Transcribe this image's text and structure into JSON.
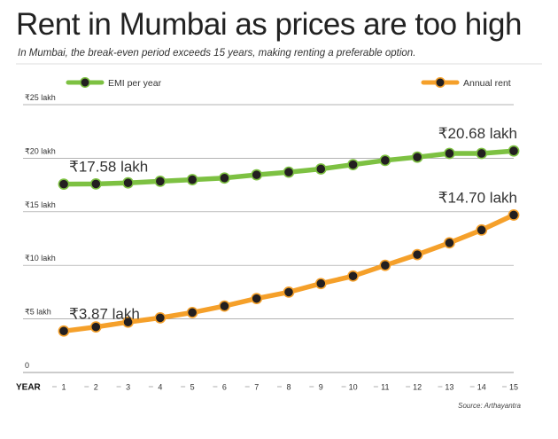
{
  "header": {
    "title": "Rent in Mumbai as prices are too high",
    "subtitle": "In Mumbai, the break-even period exceeds 15 years, making renting a preferable option."
  },
  "source": "Source: Arthayantra",
  "chart_data": {
    "type": "line",
    "x": [
      1,
      2,
      3,
      4,
      5,
      6,
      7,
      8,
      9,
      10,
      11,
      12,
      13,
      14,
      15
    ],
    "xlabel": "YEAR",
    "ylabel": "",
    "ylim": [
      0,
      25
    ],
    "yticks": [
      {
        "value": 0,
        "label": "0"
      },
      {
        "value": 5,
        "label": "₹5 lakh"
      },
      {
        "value": 10,
        "label": "₹10 lakh"
      },
      {
        "value": 15,
        "label": "₹15 lakh"
      },
      {
        "value": 20,
        "label": "₹20 lakh"
      },
      {
        "value": 25,
        "label": "₹25 lakh"
      }
    ],
    "grid": true,
    "series": [
      {
        "name": "EMI per year",
        "color": "#7dc142",
        "legend_position": "top-left",
        "values": [
          17.58,
          17.6,
          17.7,
          17.85,
          18.0,
          18.15,
          18.45,
          18.7,
          19.0,
          19.4,
          19.8,
          20.1,
          20.45,
          20.45,
          20.68
        ],
        "annotations": [
          {
            "index": 0,
            "label": "₹17.58 lakh"
          },
          {
            "index": 14,
            "label": "₹20.68 lakh"
          }
        ]
      },
      {
        "name": "Annual rent",
        "color": "#f5a02a",
        "legend_position": "top-right",
        "values": [
          3.87,
          4.25,
          4.7,
          5.1,
          5.6,
          6.2,
          6.9,
          7.5,
          8.3,
          9.0,
          10.0,
          11.0,
          12.1,
          13.3,
          14.7
        ],
        "annotations": [
          {
            "index": 0,
            "label": "₹3.87 lakh"
          },
          {
            "index": 14,
            "label": "₹14.70 lakh"
          }
        ]
      }
    ]
  }
}
